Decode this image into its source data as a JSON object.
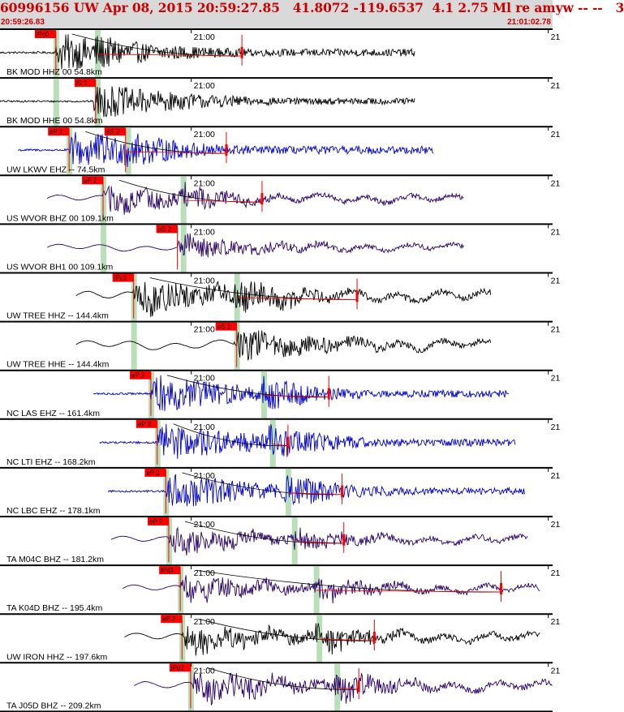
{
  "header": {
    "title": "60996156 UW Apr 08, 2015 20:59:27.85   41.8072 -119.6537  4.1 2.75 Ml re amyw -- --   3",
    "start_time": "20:59:26.83",
    "end_time": "21:01:02.78",
    "bg_color": "#d9d9d9",
    "text_color": "#cc0000"
  },
  "chart_data": {
    "type": "line",
    "title": "60996156 UW Apr 08, 2015 20:59:27.85   41.8072 -119.6537  4.1 2.75 Ml re amyw -- --   3",
    "time_window_seconds": [
      0,
      95.95
    ],
    "minute_marks": [
      {
        "label": "21:00",
        "t": 33.2
      },
      {
        "label": "21",
        "t": 95.2
      }
    ],
    "colors": {
      "black": "#000000",
      "blue": "#0000cc",
      "indigo": "#2a0066",
      "pick": "#ff0000",
      "window": "#b9dfb9"
    },
    "series": [
      {
        "name": "BK MOD HHZ 00 54.8km",
        "color": "black",
        "t_start": 0,
        "t_end": 72,
        "amp": 0.42,
        "green_t": [
          9.7,
          16.9
        ],
        "pick_t": 9.7,
        "pick_label": "iPc0",
        "amp_pick_t": 42.0,
        "curve_end_t": 42.0,
        "longper": false
      },
      {
        "name": "BK MOD HHE 00 54.8km",
        "color": "black",
        "t_start": 0,
        "t_end": 72,
        "amp": 0.38,
        "green_t": [
          9.7,
          16.9
        ],
        "pick_t": 16.6,
        "pick_label": "iS 1",
        "amp_pick_t": null,
        "curve_end_t": null,
        "longper": false
      },
      {
        "name": "UW LKWV EHZ -- 74.5km",
        "color": "blue",
        "t_start": 3.1,
        "t_end": 75.3,
        "amp": 0.45,
        "green_t": [
          12.0,
          22.2
        ],
        "pick_t": 12.0,
        "pick_label": "eP 1",
        "amp_pick_t": 39.3,
        "curve_end_t": 39.3,
        "pick2_t": 21.8,
        "pick2_label": "eS 2",
        "longper": false
      },
      {
        "name": "US WVOR BHZ 00 109.1km",
        "color": "indigo",
        "t_start": 8.2,
        "t_end": 80.5,
        "amp": 0.3,
        "green_t": [
          17.9,
          31.8
        ],
        "pick_t": 17.9,
        "pick_label": "eP 2",
        "amp_pick_t": 45.5,
        "curve_end_t": 45.5,
        "longper": true
      },
      {
        "name": "US WVOR BH1 00 109.1km",
        "color": "indigo",
        "t_start": 8.2,
        "t_end": 80.5,
        "amp": 0.26,
        "green_t": [
          17.9,
          31.8
        ],
        "pick_t": 30.8,
        "pick_label": "eS 2",
        "amp_pick_t": null,
        "curve_end_t": null,
        "longper": true
      },
      {
        "name": "UW TREE HHZ -- 144.4km",
        "color": "black",
        "t_start": 13.2,
        "t_end": 85.3,
        "amp": 0.4,
        "green_t": [
          23.2,
          41.1
        ],
        "pick_t": 23.2,
        "pick_label": "iPc1",
        "amp_pick_t": 62.0,
        "curve_end_t": 62.0,
        "longper": true
      },
      {
        "name": "UW TREE HHE -- 144.4km",
        "color": "black",
        "t_start": 13.2,
        "t_end": 85.3,
        "amp": 0.34,
        "green_t": [
          23.2,
          41.1
        ],
        "pick_t": 41.1,
        "pick_label": "eS 1",
        "amp_pick_t": null,
        "curve_end_t": null,
        "longper": true
      },
      {
        "name": "NC LAS EHZ -- 161.4km",
        "color": "blue",
        "t_start": 16.2,
        "t_end": 88.4,
        "amp": 0.42,
        "green_t": [
          26.2,
          45.8
        ],
        "pick_t": 26.2,
        "pick_label": "eP 2",
        "amp_pick_t": 57.1,
        "curve_end_t": 57.1,
        "longper": false
      },
      {
        "name": "NC LTI EHZ -- 168.2km",
        "color": "blue",
        "t_start": 17.3,
        "t_end": 89.5,
        "amp": 0.42,
        "green_t": [
          27.3,
          47.3
        ],
        "pick_t": 27.3,
        "pick_label": "eP 2",
        "amp_pick_t": 50.0,
        "curve_end_t": 50.0,
        "longper": false
      },
      {
        "name": "NC LBC EHZ -- 178.1km",
        "color": "blue",
        "t_start": 18.8,
        "t_end": 91.1,
        "amp": 0.4,
        "green_t": [
          28.8,
          50.0
        ],
        "pick_t": 28.8,
        "pick_label": "eP 2",
        "amp_pick_t": 59.4,
        "curve_end_t": 59.4,
        "longper": false
      },
      {
        "name": "TA M04C BHZ -- 181.2km",
        "color": "indigo",
        "t_start": 19.3,
        "t_end": 91.6,
        "amp": 0.3,
        "green_t": [
          29.3,
          51.1
        ],
        "pick_t": 29.3,
        "pick_label": "eP 2",
        "amp_pick_t": 59.7,
        "curve_end_t": 59.7,
        "longper": true
      },
      {
        "name": "TA K04D BHZ -- 195.4km",
        "color": "indigo",
        "t_start": 21.3,
        "t_end": 93.8,
        "amp": 0.3,
        "green_t": [
          31.3,
          54.9
        ],
        "pick_t": 31.3,
        "pick_label": "iPd1",
        "amp_pick_t": 87.0,
        "curve_end_t": 87.0,
        "longper": true
      },
      {
        "name": "UW IRON HHZ -- 197.6km",
        "color": "black",
        "t_start": 21.6,
        "t_end": 93.8,
        "amp": 0.34,
        "green_t": [
          31.6,
          55.4
        ],
        "pick_t": 31.6,
        "pick_label": "eP 2",
        "amp_pick_t": 65.0,
        "curve_end_t": 65.0,
        "longper": true
      },
      {
        "name": "TA J05D BHZ -- 209.2km",
        "color": "indigo",
        "t_start": 23.3,
        "t_end": 95.95,
        "amp": 0.36,
        "green_t": [
          33.1,
          58.5
        ],
        "pick_t": 33.1,
        "pick_label": "iPd1",
        "amp_pick_t": 62.3,
        "curve_end_t": 62.3,
        "longper": true
      }
    ]
  }
}
